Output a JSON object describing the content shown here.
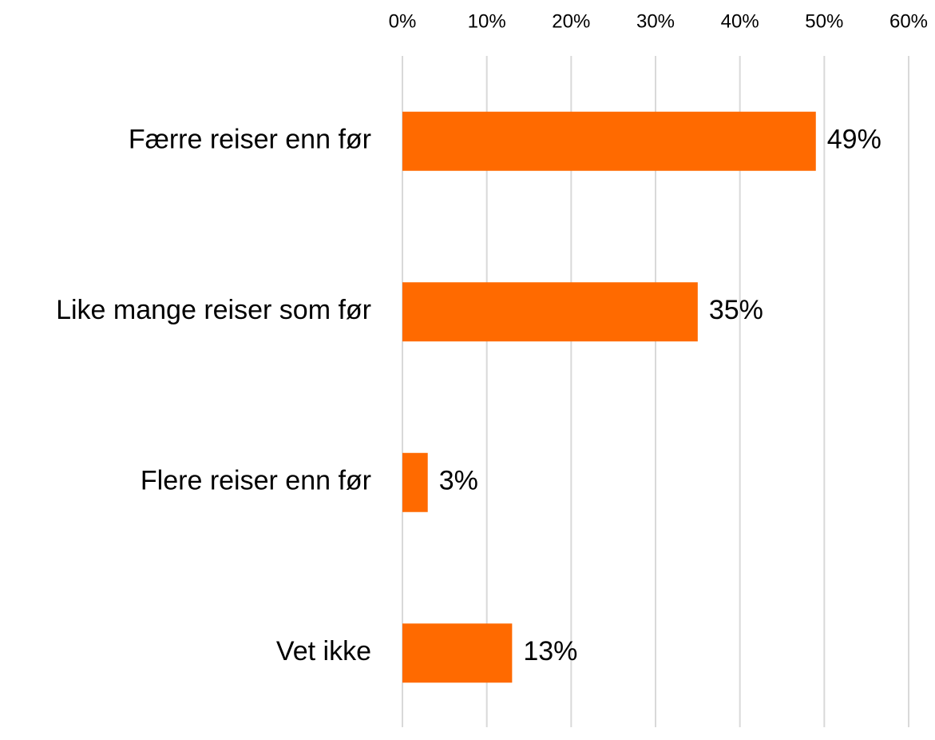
{
  "chart_data": {
    "type": "bar",
    "orientation": "horizontal",
    "categories": [
      "Færre reiser enn før",
      "Like mange reiser som før",
      "Flere reiser enn før",
      "Vet ikke"
    ],
    "values": [
      49,
      35,
      3,
      13
    ],
    "value_labels": [
      "49%",
      "35%",
      "3%",
      "13%"
    ],
    "color": "#ff6a00",
    "xlim": [
      0,
      60
    ],
    "xticks": [
      {
        "value": 0,
        "label": "0%"
      },
      {
        "value": 10,
        "label": "10%"
      },
      {
        "value": 20,
        "label": "20%"
      },
      {
        "value": 30,
        "label": "30%"
      },
      {
        "value": 40,
        "label": "40%"
      },
      {
        "value": 50,
        "label": "50%"
      },
      {
        "value": 60,
        "label": "60%"
      }
    ],
    "grid": true
  }
}
